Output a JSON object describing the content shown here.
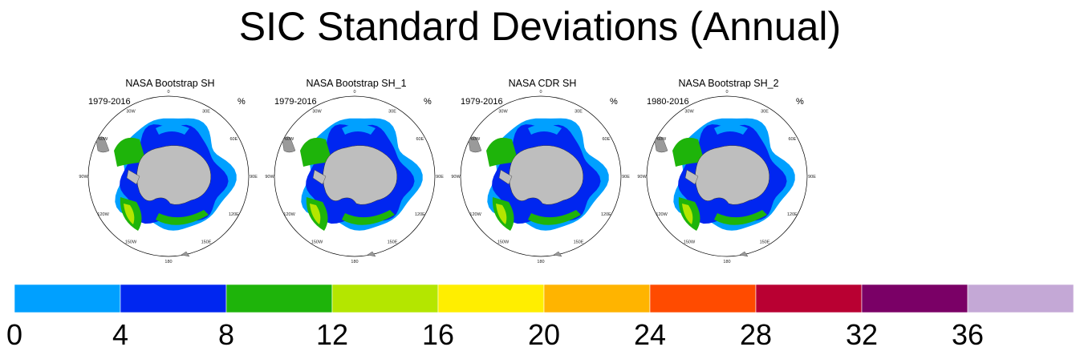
{
  "title": "SIC Standard Deviations (Annual)",
  "panels": [
    {
      "title": "NASA Bootstrap SH",
      "period": "1979-2016",
      "units": "%"
    },
    {
      "title": "NASA Bootstrap SH_1",
      "period": "1979-2016",
      "units": "%"
    },
    {
      "title": "NASA CDR SH",
      "period": "1979-2016",
      "units": "%"
    },
    {
      "title": "NASA Bootstrap SH_2",
      "period": "1980-2016",
      "units": "%"
    }
  ],
  "map_labels": [
    "0",
    "30E",
    "60E",
    "90E",
    "120E",
    "150E",
    "180",
    "150W",
    "120W",
    "90W",
    "60W",
    "30W"
  ],
  "chart_data": {
    "type": "heatmap",
    "title": "SIC Standard Deviations (Annual)",
    "projection": "south polar stereographic",
    "units": "%",
    "colorbar": {
      "ticks": [
        0,
        4,
        8,
        12,
        16,
        20,
        24,
        28,
        32,
        36
      ],
      "bins": [
        {
          "min": 0,
          "max": 4,
          "color": "#00a0ff"
        },
        {
          "min": 4,
          "max": 8,
          "color": "#0026f0"
        },
        {
          "min": 8,
          "max": 12,
          "color": "#1eb40a"
        },
        {
          "min": 12,
          "max": 16,
          "color": "#b4e600"
        },
        {
          "min": 16,
          "max": 20,
          "color": "#ffee00"
        },
        {
          "min": 20,
          "max": 24,
          "color": "#ffb400"
        },
        {
          "min": 24,
          "max": 28,
          "color": "#ff4b00"
        },
        {
          "min": 28,
          "max": 32,
          "color": "#b90032"
        },
        {
          "min": 32,
          "max": 36,
          "color": "#7a0066"
        },
        {
          "min": 36,
          "max": 40,
          "color": "#c4a8d6"
        }
      ]
    },
    "land_color": "#bebebe"
  }
}
